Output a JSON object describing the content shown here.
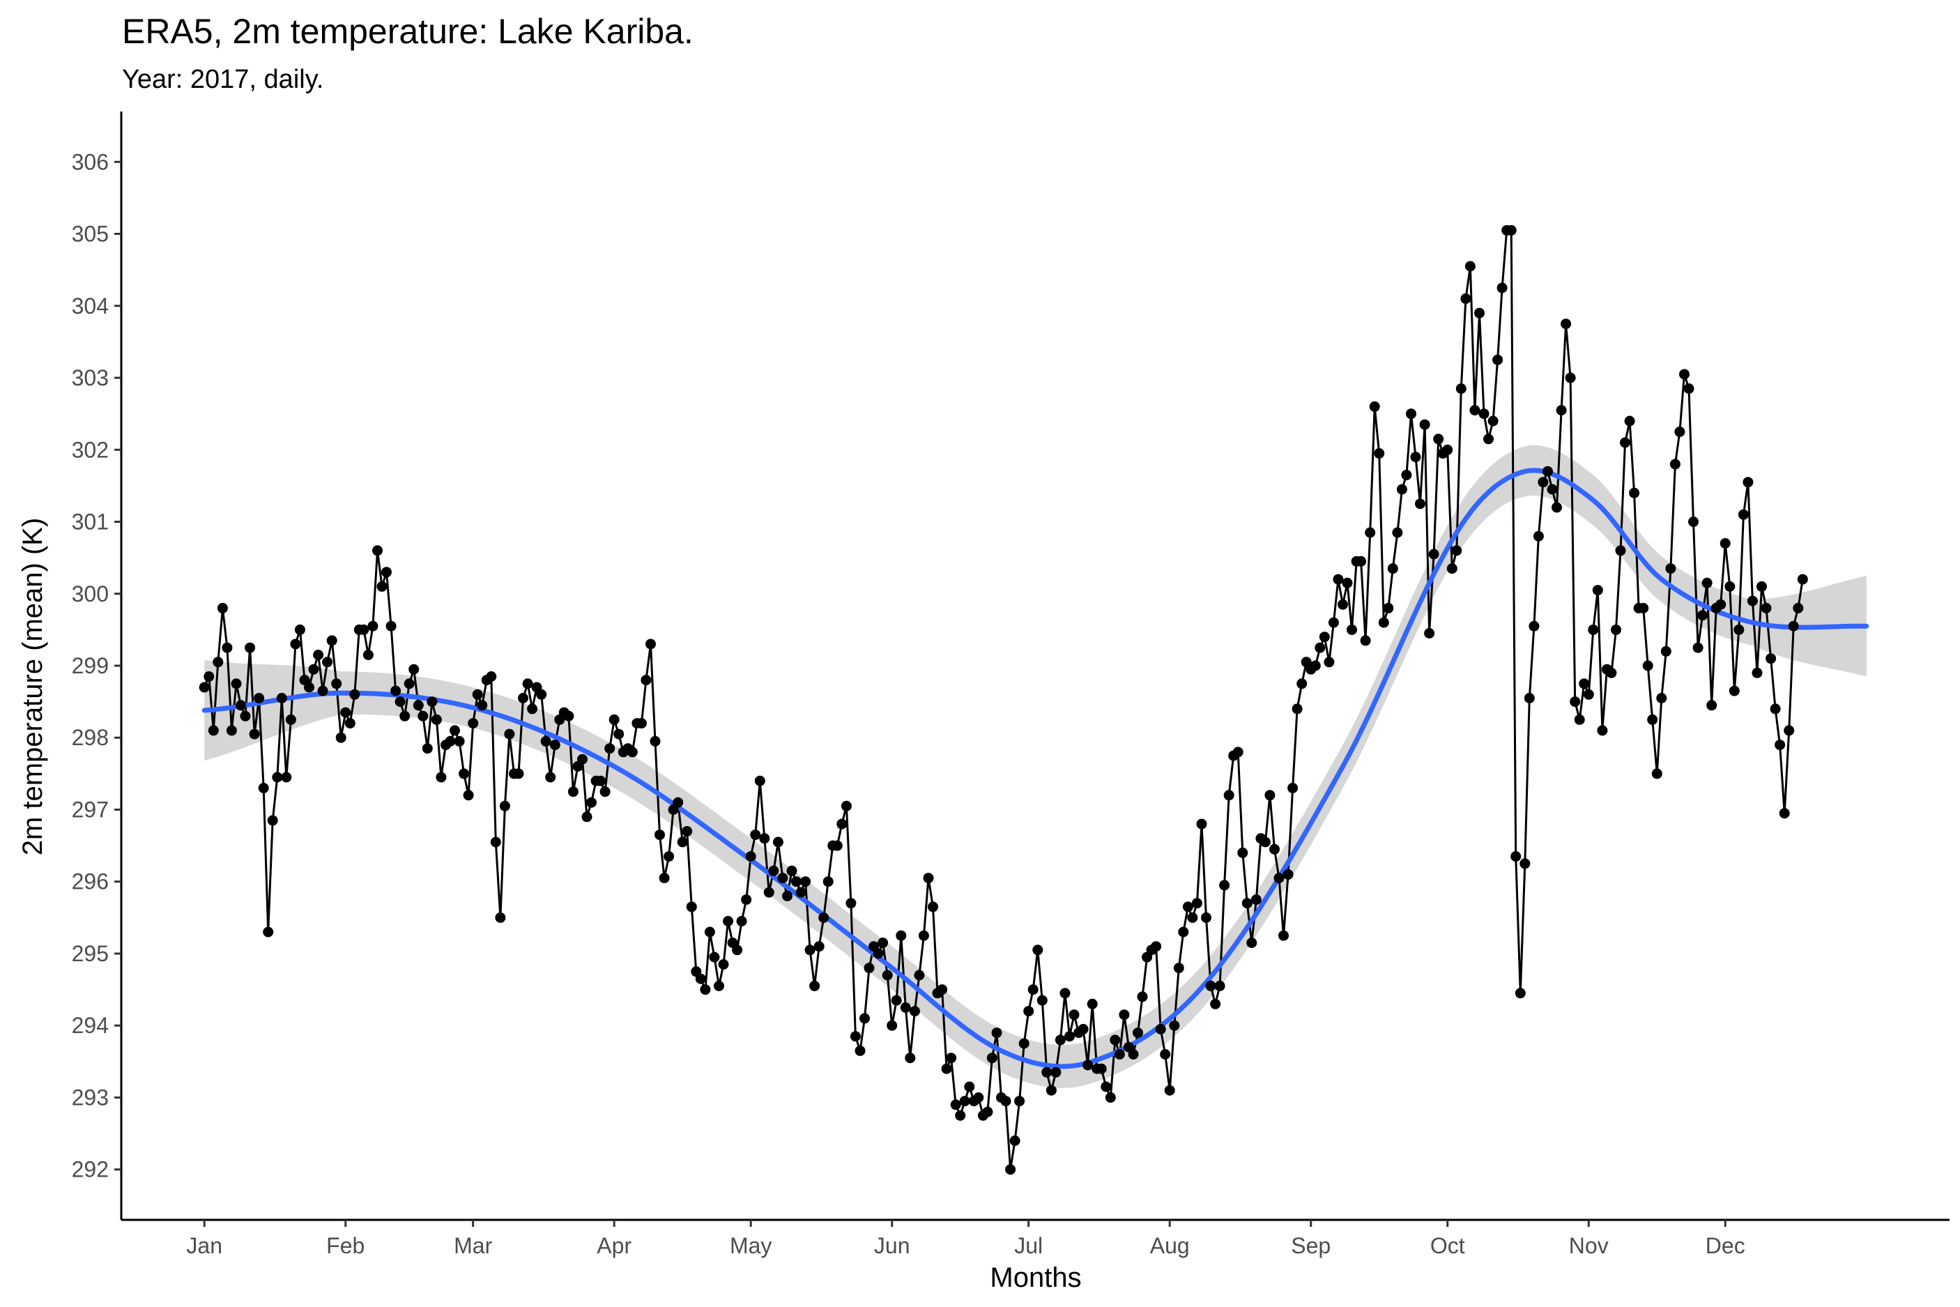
{
  "chart_data": {
    "type": "line",
    "title": "ERA5, 2m temperature: Lake Kariba.",
    "subtitle": "Year: 2017, daily.",
    "xlabel": "Months",
    "ylabel": "2m temperature (mean) (K)",
    "x_tick_labels": [
      "Jan",
      "Feb",
      "Mar",
      "Apr",
      "May",
      "Jun",
      "Jul",
      "Aug",
      "Sep",
      "Oct",
      "Nov",
      "Dec"
    ],
    "y_tick_labels": [
      "292",
      "293",
      "294",
      "295",
      "296",
      "297",
      "298",
      "299",
      "300",
      "301",
      "302",
      "303",
      "304",
      "305",
      "306"
    ],
    "ylim": [
      291.3,
      306.7
    ],
    "xlim": [
      -18.25,
      383.25
    ],
    "grid": false,
    "legend": "none",
    "series": [
      {
        "style": "points-and-line",
        "color": "#000000",
        "x_unit": "day of year (0 = 1 Jan 2017)",
        "daily_means": [
          {
            "month": "Jan",
            "values": [
              298.7,
              298.85,
              298.1,
              299.05,
              299.8,
              299.25,
              298.1,
              298.75,
              298.45,
              298.3,
              299.25,
              298.05,
              298.55,
              297.3,
              295.3,
              296.85,
              297.45,
              298.55,
              297.45,
              298.25,
              299.3,
              299.5,
              298.8,
              298.7,
              298.95,
              299.15,
              298.65,
              299.05,
              299.35,
              298.75,
              298.0
            ]
          },
          {
            "month": "Feb",
            "values": [
              298.35,
              298.2,
              298.6,
              299.5,
              299.5,
              299.15,
              299.55,
              300.6,
              300.1,
              300.3,
              299.55,
              298.65,
              298.5,
              298.3,
              298.75,
              298.95,
              298.45,
              298.3,
              297.85,
              298.5,
              298.25,
              297.45,
              297.9,
              297.95,
              298.1,
              297.95,
              297.5,
              297.2
            ]
          },
          {
            "month": "Mar",
            "values": [
              298.2,
              298.6,
              298.45,
              298.8,
              298.85,
              296.55,
              295.5,
              297.05,
              298.05,
              297.5,
              297.5,
              298.55,
              298.75,
              298.4,
              298.7,
              298.6,
              297.95,
              297.45,
              297.9,
              298.25,
              298.35,
              298.3,
              297.25,
              297.6,
              297.7,
              296.9,
              297.1,
              297.4,
              297.4,
              297.25,
              297.85
            ]
          },
          {
            "month": "Apr",
            "values": [
              298.25,
              298.05,
              297.8,
              297.85,
              297.8,
              298.2,
              298.2,
              298.8,
              299.3,
              297.95,
              296.65,
              296.05,
              296.35,
              297.0,
              297.1,
              296.55,
              296.7,
              295.65,
              294.75,
              294.65,
              294.5,
              295.3,
              294.95,
              294.55,
              294.85,
              295.45,
              295.15,
              295.05,
              295.45,
              295.75
            ]
          },
          {
            "month": "May",
            "values": [
              296.35,
              296.65,
              297.4,
              296.6,
              295.85,
              296.15,
              296.55,
              296.05,
              295.8,
              296.15,
              296.0,
              295.85,
              296.0,
              295.05,
              294.55,
              295.1,
              295.5,
              296.0,
              296.5,
              296.5,
              296.8,
              297.05,
              295.7,
              293.85,
              293.65,
              294.1,
              294.8,
              295.1,
              295.0,
              295.15,
              294.7
            ]
          },
          {
            "month": "Jun",
            "values": [
              294.0,
              294.35,
              295.25,
              294.25,
              293.55,
              294.2,
              294.7,
              295.25,
              296.05,
              295.65,
              294.45,
              294.5,
              293.4,
              293.55,
              292.9,
              292.75,
              292.95,
              293.15,
              292.95,
              293.0,
              292.75,
              292.8,
              293.55,
              293.9,
              293.0,
              292.95,
              292.0,
              292.4,
              292.95,
              293.75
            ]
          },
          {
            "month": "Jul",
            "values": [
              294.2,
              294.5,
              295.05,
              294.35,
              293.35,
              293.1,
              293.35,
              293.8,
              294.45,
              293.85,
              294.15,
              293.9,
              293.95,
              293.45,
              294.3,
              293.4,
              293.4,
              293.15,
              293.0,
              293.8,
              293.6,
              294.15,
              293.7,
              293.6,
              293.9,
              294.4,
              294.95,
              295.05,
              295.1,
              293.95,
              293.6
            ]
          },
          {
            "month": "Aug",
            "values": [
              293.1,
              294.0,
              294.8,
              295.3,
              295.65,
              295.5,
              295.7,
              296.8,
              295.5,
              294.55,
              294.3,
              294.55,
              295.95,
              297.2,
              297.75,
              297.8,
              296.4,
              295.7,
              295.15,
              295.75,
              296.6,
              296.55,
              297.2,
              296.45,
              296.05,
              295.25,
              296.1,
              297.3,
              298.4,
              298.75,
              299.05
            ]
          },
          {
            "month": "Sep",
            "values": [
              298.95,
              299.0,
              299.25,
              299.4,
              299.05,
              299.6,
              300.2,
              299.85,
              300.15,
              299.5,
              300.45,
              300.45,
              299.35,
              300.85,
              302.6,
              301.95,
              299.6,
              299.8,
              300.35,
              300.85,
              301.45,
              301.65,
              302.5,
              301.9,
              301.25,
              302.35,
              299.45,
              300.55,
              302.15,
              301.95
            ]
          },
          {
            "month": "Oct",
            "values": [
              302.0,
              300.35,
              300.6,
              302.85,
              304.1,
              304.55,
              302.55,
              303.9,
              302.5,
              302.15,
              302.4,
              303.25,
              304.25,
              305.05,
              305.05,
              296.35,
              294.45,
              296.25,
              298.55,
              299.55,
              300.8,
              301.55,
              301.7,
              301.45,
              301.2,
              302.55,
              303.75,
              303.0,
              298.5,
              298.25,
              298.75
            ]
          },
          {
            "month": "Nov",
            "values": [
              298.6,
              299.5,
              300.05,
              298.1,
              298.95,
              298.9,
              299.5,
              300.6,
              302.1,
              302.4,
              301.4,
              299.8,
              299.8,
              299.0,
              298.25,
              297.5,
              298.55,
              299.2,
              300.35,
              301.8,
              302.25,
              303.05,
              302.85,
              301.0,
              299.25,
              299.7,
              300.15,
              298.45,
              299.8,
              299.85
            ]
          },
          {
            "month": "Dec",
            "values": [
              300.7,
              300.1,
              298.65,
              299.5,
              301.1,
              301.55,
              299.9,
              298.9,
              300.1,
              299.8,
              299.1,
              298.4,
              297.9,
              296.95,
              298.1,
              299.55,
              299.8,
              300.2
            ]
          }
        ]
      },
      {
        "style": "smooth-fit-with-confidence-band",
        "color": "#3366ff",
        "band_color": "#cccccc",
        "x": [
          0,
          30,
          60,
          90,
          120,
          150,
          175,
          195,
          220,
          250,
          275,
          290,
          305,
          320,
          340,
          365
        ],
        "y": [
          298.38,
          298.62,
          298.4,
          297.6,
          296.3,
          294.85,
          293.65,
          293.5,
          294.6,
          297.6,
          300.85,
          301.7,
          301.3,
          300.2,
          299.6,
          299.55
        ],
        "band_halfwidth": [
          0.7,
          0.3,
          0.28,
          0.3,
          0.3,
          0.3,
          0.3,
          0.3,
          0.3,
          0.3,
          0.32,
          0.35,
          0.35,
          0.32,
          0.32,
          0.7
        ]
      }
    ]
  }
}
